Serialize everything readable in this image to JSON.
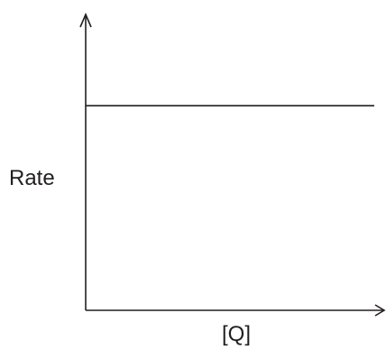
{
  "chart_data": {
    "type": "line",
    "title": "",
    "xlabel": "[Q]",
    "ylabel": "Rate",
    "x_ticks": [],
    "y_ticks": [],
    "grid": false,
    "legend": "none",
    "xlim": [
      0,
      1
    ],
    "ylim": [
      0,
      1
    ],
    "series": [
      {
        "x": [
          0,
          1
        ],
        "values": [
          0.7,
          0.7
        ]
      }
    ]
  }
}
